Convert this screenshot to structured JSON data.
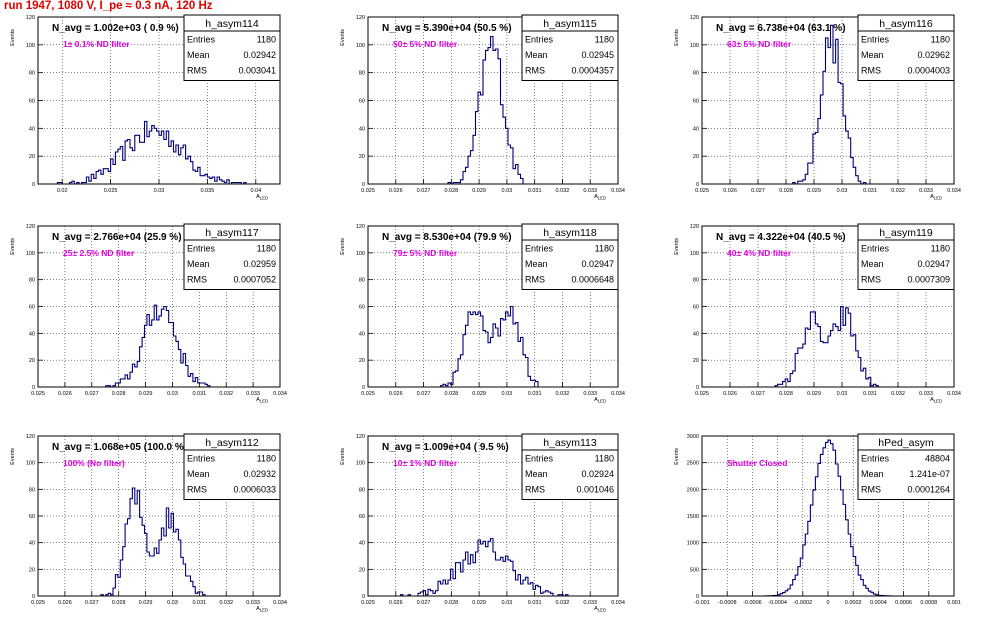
{
  "run_title": "run 1947,  1080 V, I_pe ≈ 0.3 nA, 120 Hz",
  "colors": {
    "title": "#e00000",
    "annotation": "#e000e0",
    "histogram": "#00007a",
    "grid": "#000000",
    "background": "#ffffff"
  },
  "chart_data": [
    {
      "type": "histogram",
      "hist_name": "h_asym114",
      "navg_label": "N_avg = 1.002e+03 ( 0.9 %)",
      "filter_label": "1± 0.1% ND filter",
      "stats": [
        {
          "label": "Entries",
          "value": "1180"
        },
        {
          "label": "Mean",
          "value": "0.02942"
        },
        {
          "label": "RMS",
          "value": "0.003041"
        }
      ],
      "ylabel": "Events",
      "xlabel": "A_LED",
      "xlim": [
        0.0175,
        0.0425
      ],
      "ylim": [
        0,
        120
      ],
      "xticks": [
        0.02,
        0.025,
        0.03,
        0.035,
        0.04
      ],
      "xtick_labels": [
        "0.02",
        "0.025",
        "0.03",
        "0.035",
        "0.04"
      ],
      "yticks": [
        0,
        20,
        40,
        60,
        80,
        100,
        120
      ],
      "ytick_labels": [
        "0",
        "20",
        "40",
        "60",
        "80",
        "100",
        "120"
      ],
      "profile": [
        {
          "mean": 0.02942,
          "sigma": 0.003041,
          "peak": 38
        }
      ]
    },
    {
      "type": "histogram",
      "hist_name": "h_asym115",
      "navg_label": "N_avg = 5.390e+04 (50.5 %)",
      "filter_label": "50± 5% ND filter",
      "stats": [
        {
          "label": "Entries",
          "value": "1180"
        },
        {
          "label": "Mean",
          "value": "0.02945"
        },
        {
          "label": "RMS",
          "value": "0.0004357"
        }
      ],
      "ylabel": "Events",
      "xlabel": "A_LED",
      "xlim": [
        0.025,
        0.034
      ],
      "ylim": [
        0,
        120
      ],
      "xticks": [
        0.025,
        0.026,
        0.027,
        0.028,
        0.029,
        0.03,
        0.031,
        0.032,
        0.033,
        0.034
      ],
      "xtick_labels": [
        "0.025",
        "0.026",
        "0.027",
        "0.028",
        "0.029",
        "0.03",
        "0.031",
        "0.032",
        "0.033",
        "0.034"
      ],
      "yticks": [
        0,
        20,
        40,
        60,
        80,
        100,
        120
      ],
      "ytick_labels": [
        "0",
        "20",
        "40",
        "60",
        "80",
        "100",
        "120"
      ],
      "profile": [
        {
          "mean": 0.02945,
          "sigma": 0.00042,
          "peak": 100
        }
      ]
    },
    {
      "type": "histogram",
      "hist_name": "h_asym116",
      "navg_label": "N_avg = 6.738e+04 (63.1 %)",
      "filter_label": "63± 5% ND filter",
      "stats": [
        {
          "label": "Entries",
          "value": "1180"
        },
        {
          "label": "Mean",
          "value": "0.02962"
        },
        {
          "label": "RMS",
          "value": "0.0004003"
        }
      ],
      "ylabel": "Events",
      "xlabel": "A_LED",
      "xlim": [
        0.025,
        0.034
      ],
      "ylim": [
        0,
        120
      ],
      "xticks": [
        0.025,
        0.026,
        0.027,
        0.028,
        0.029,
        0.03,
        0.031,
        0.032,
        0.033,
        0.034
      ],
      "xtick_labels": [
        "0.025",
        "0.026",
        "0.027",
        "0.028",
        "0.029",
        "0.03",
        "0.031",
        "0.032",
        "0.033",
        "0.034"
      ],
      "yticks": [
        0,
        20,
        40,
        60,
        80,
        100,
        120
      ],
      "ytick_labels": [
        "0",
        "20",
        "40",
        "60",
        "80",
        "100",
        "120"
      ],
      "profile": [
        {
          "mean": 0.02962,
          "sigma": 0.00039,
          "peak": 104
        }
      ]
    },
    {
      "type": "histogram",
      "hist_name": "h_asym117",
      "navg_label": "N_avg = 2.766e+04 (25.9 %)",
      "filter_label": "25± 2.5% ND filter",
      "stats": [
        {
          "label": "Entries",
          "value": "1180"
        },
        {
          "label": "Mean",
          "value": "0.02959"
        },
        {
          "label": "RMS",
          "value": "0.0007052"
        }
      ],
      "ylabel": "Events",
      "xlabel": "A_LED",
      "xlim": [
        0.025,
        0.034
      ],
      "ylim": [
        0,
        120
      ],
      "xticks": [
        0.025,
        0.026,
        0.027,
        0.028,
        0.029,
        0.03,
        0.031,
        0.032,
        0.033,
        0.034
      ],
      "xtick_labels": [
        "0.025",
        "0.026",
        "0.027",
        "0.028",
        "0.029",
        "0.03",
        "0.031",
        "0.032",
        "0.033",
        "0.034"
      ],
      "yticks": [
        0,
        20,
        40,
        60,
        80,
        100,
        120
      ],
      "ytick_labels": [
        "0",
        "20",
        "40",
        "60",
        "80",
        "100",
        "120"
      ],
      "profile": [
        {
          "mean": 0.02955,
          "sigma": 0.0006,
          "peak": 60
        }
      ]
    },
    {
      "type": "histogram",
      "hist_name": "h_asym118",
      "navg_label": "N_avg = 8.530e+04 (79.9 %)",
      "filter_label": "79± 5% ND filter",
      "stats": [
        {
          "label": "Entries",
          "value": "1180"
        },
        {
          "label": "Mean",
          "value": "0.02947"
        },
        {
          "label": "RMS",
          "value": "0.0006648"
        }
      ],
      "ylabel": "Events",
      "xlabel": "A_LED",
      "xlim": [
        0.025,
        0.034
      ],
      "ylim": [
        0,
        120
      ],
      "xticks": [
        0.025,
        0.026,
        0.027,
        0.028,
        0.029,
        0.03,
        0.031,
        0.032,
        0.033,
        0.034
      ],
      "xtick_labels": [
        "0.025",
        "0.026",
        "0.027",
        "0.028",
        "0.029",
        "0.03",
        "0.031",
        "0.032",
        "0.033",
        "0.034"
      ],
      "yticks": [
        0,
        20,
        40,
        60,
        80,
        100,
        120
      ],
      "ytick_labels": [
        "0",
        "20",
        "40",
        "60",
        "80",
        "100",
        "120"
      ],
      "profile": [
        {
          "mean": 0.0289,
          "sigma": 0.0004,
          "peak": 60
        },
        {
          "mean": 0.0301,
          "sigma": 0.0004,
          "peak": 60
        }
      ]
    },
    {
      "type": "histogram",
      "hist_name": "h_asym119",
      "navg_label": "N_avg = 4.322e+04 (40.5 %)",
      "filter_label": "40± 4% ND filter",
      "stats": [
        {
          "label": "Entries",
          "value": "1180"
        },
        {
          "label": "Mean",
          "value": "0.02947"
        },
        {
          "label": "RMS",
          "value": "0.0007309"
        }
      ],
      "ylabel": "Events",
      "xlabel": "A_LED",
      "xlim": [
        0.025,
        0.034
      ],
      "ylim": [
        0,
        120
      ],
      "xticks": [
        0.025,
        0.026,
        0.027,
        0.028,
        0.029,
        0.03,
        0.031,
        0.032,
        0.033,
        0.034
      ],
      "xtick_labels": [
        "0.025",
        "0.026",
        "0.027",
        "0.028",
        "0.029",
        "0.03",
        "0.031",
        "0.032",
        "0.033",
        "0.034"
      ],
      "yticks": [
        0,
        20,
        40,
        60,
        80,
        100,
        120
      ],
      "ytick_labels": [
        "0",
        "20",
        "40",
        "60",
        "80",
        "100",
        "120"
      ],
      "profile": [
        {
          "mean": 0.0289,
          "sigma": 0.0004,
          "peak": 48
        },
        {
          "mean": 0.0301,
          "sigma": 0.0004,
          "peak": 52
        }
      ]
    },
    {
      "type": "histogram",
      "hist_name": "h_asym112",
      "navg_label": "N_avg = 1.068e+05 (100.0 %)",
      "filter_label": "100% (No filter)",
      "stats": [
        {
          "label": "Entries",
          "value": "1180"
        },
        {
          "label": "Mean",
          "value": "0.02932"
        },
        {
          "label": "RMS",
          "value": "0.0006033"
        }
      ],
      "ylabel": "Events",
      "xlabel": "A_LED",
      "xlim": [
        0.025,
        0.034
      ],
      "ylim": [
        0,
        120
      ],
      "xticks": [
        0.025,
        0.026,
        0.027,
        0.028,
        0.029,
        0.03,
        0.031,
        0.032,
        0.033,
        0.034
      ],
      "xtick_labels": [
        "0.025",
        "0.026",
        "0.027",
        "0.028",
        "0.029",
        "0.03",
        "0.031",
        "0.032",
        "0.033",
        "0.034"
      ],
      "yticks": [
        0,
        20,
        40,
        60,
        80,
        100,
        120
      ],
      "ytick_labels": [
        "0",
        "20",
        "40",
        "60",
        "80",
        "100",
        "120"
      ],
      "profile": [
        {
          "mean": 0.0286,
          "sigma": 0.00035,
          "peak": 72
        },
        {
          "mean": 0.0299,
          "sigma": 0.00045,
          "peak": 58
        }
      ]
    },
    {
      "type": "histogram",
      "hist_name": "h_asym113",
      "navg_label": "N_avg = 1.009e+04 ( 9.5 %)",
      "filter_label": "10± 1% ND filter",
      "stats": [
        {
          "label": "Entries",
          "value": "1180"
        },
        {
          "label": "Mean",
          "value": "0.02924"
        },
        {
          "label": "RMS",
          "value": "0.001046"
        }
      ],
      "ylabel": "Events",
      "xlabel": "A_LED",
      "xlim": [
        0.025,
        0.034
      ],
      "ylim": [
        0,
        120
      ],
      "xticks": [
        0.025,
        0.026,
        0.027,
        0.028,
        0.029,
        0.03,
        0.031,
        0.032,
        0.033,
        0.034
      ],
      "xtick_labels": [
        "0.025",
        "0.026",
        "0.027",
        "0.028",
        "0.029",
        "0.03",
        "0.031",
        "0.032",
        "0.033",
        "0.034"
      ],
      "yticks": [
        0,
        20,
        40,
        60,
        80,
        100,
        120
      ],
      "ytick_labels": [
        "0",
        "20",
        "40",
        "60",
        "80",
        "100",
        "120"
      ],
      "profile": [
        {
          "mean": 0.02924,
          "sigma": 0.00095,
          "peak": 36
        }
      ]
    },
    {
      "type": "histogram",
      "hist_name": "hPed_asym",
      "navg_label": "",
      "filter_label": "Shutter Closed",
      "stats": [
        {
          "label": "Entries",
          "value": "48804"
        },
        {
          "label": "Mean",
          "value": "1.241e-07"
        },
        {
          "label": "RMS",
          "value": "0.0001264"
        }
      ],
      "ylabel": "Events",
      "xlabel": "",
      "xlim": [
        -0.001,
        0.001
      ],
      "ylim": [
        0,
        3000
      ],
      "xticks": [
        -0.001,
        -0.0008,
        -0.0006,
        -0.0004,
        -0.0002,
        0,
        0.0002,
        0.0004,
        0.0006,
        0.0008,
        0.001
      ],
      "xtick_labels": [
        "-0.001",
        "-0.0008",
        "-0.0006",
        "-0.0004",
        "-0.0002",
        "0",
        "0.0002",
        "0.0004",
        "0.0006",
        "0.0008",
        "0.001"
      ],
      "yticks": [
        0,
        500,
        1000,
        1500,
        2000,
        2500,
        3000
      ],
      "ytick_labels": [
        "0",
        "500",
        "1000",
        "1500",
        "2000",
        "2500",
        "3000"
      ],
      "profile": [
        {
          "mean": 1e-07,
          "sigma": 0.0001264,
          "peak": 2900
        }
      ]
    }
  ]
}
